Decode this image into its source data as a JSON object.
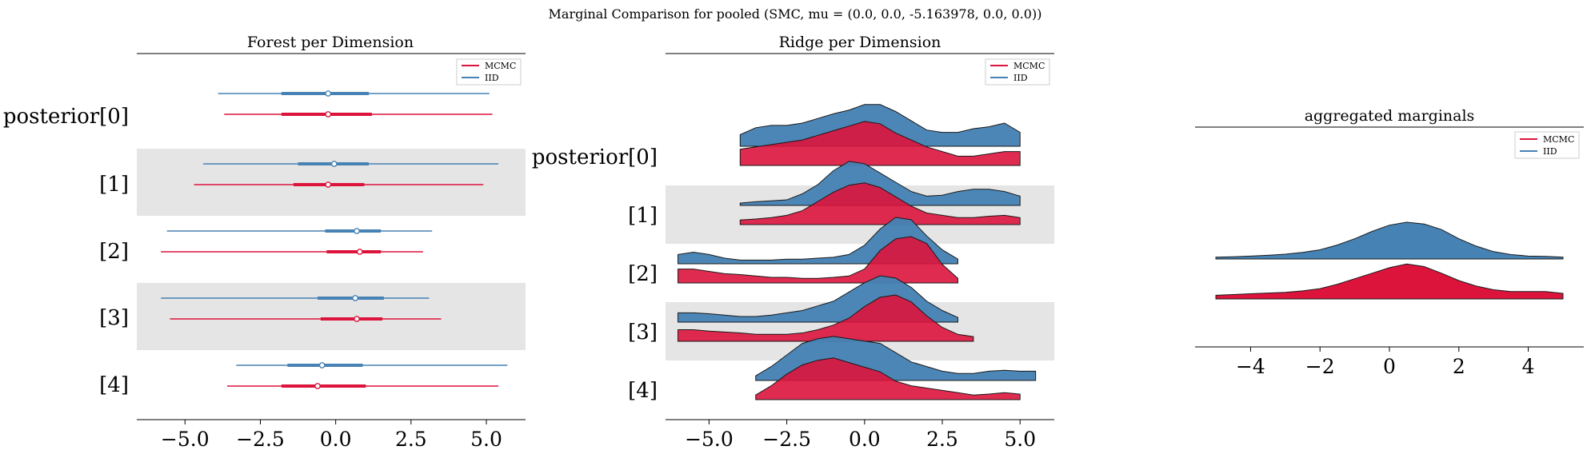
{
  "figure_title": "Marginal Comparison for pooled (SMC, mu = (0.0, 0.0, -5.163978, 0.0, 0.0))",
  "colors": {
    "mcmc": "#dc143c",
    "iid": "#4682b4",
    "band": "#e5e5e5"
  },
  "chart_data": [
    {
      "type": "forest",
      "title": "Forest per Dimension",
      "legend": [
        "MCMC",
        "IID"
      ],
      "legend_position": "top-right",
      "xlim": [
        -6.6,
        6.3
      ],
      "xticks": [
        -5.0,
        -2.5,
        0.0,
        2.5,
        5.0
      ],
      "xtick_labels": [
        "−5.0",
        "−2.5",
        "0.0",
        "2.5",
        "5.0"
      ],
      "ylabels": [
        "posterior[0]",
        "[1]",
        "[2]",
        "[3]",
        "[4]"
      ],
      "series": {
        "IID": [
          {
            "hdi": [
              -3.9,
              5.1
            ],
            "iqr": [
              -1.8,
              1.1
            ],
            "median": -0.25
          },
          {
            "hdi": [
              -4.4,
              5.4
            ],
            "iqr": [
              -1.25,
              1.1
            ],
            "median": -0.05
          },
          {
            "hdi": [
              -5.6,
              3.2
            ],
            "iqr": [
              -0.35,
              1.5
            ],
            "median": 0.7
          },
          {
            "hdi": [
              -5.8,
              3.1
            ],
            "iqr": [
              -0.6,
              1.6
            ],
            "median": 0.65
          },
          {
            "hdi": [
              -3.3,
              5.7
            ],
            "iqr": [
              -1.6,
              0.9
            ],
            "median": -0.45
          }
        ],
        "MCMC": [
          {
            "hdi": [
              -3.7,
              5.2
            ],
            "iqr": [
              -1.8,
              1.2
            ],
            "median": -0.25
          },
          {
            "hdi": [
              -4.7,
              4.9
            ],
            "iqr": [
              -1.4,
              0.95
            ],
            "median": -0.25
          },
          {
            "hdi": [
              -5.8,
              2.9
            ],
            "iqr": [
              -0.3,
              1.5
            ],
            "median": 0.8
          },
          {
            "hdi": [
              -5.5,
              3.5
            ],
            "iqr": [
              -0.5,
              1.55
            ],
            "median": 0.7
          },
          {
            "hdi": [
              -3.6,
              5.4
            ],
            "iqr": [
              -1.8,
              1.0
            ],
            "median": -0.6
          }
        ]
      }
    },
    {
      "type": "ridge",
      "title": "Ridge per Dimension",
      "legend": [
        "MCMC",
        "IID"
      ],
      "legend_position": "top-right",
      "xlim": [
        -6.4,
        6.1
      ],
      "xticks": [
        -5.0,
        -2.5,
        0.0,
        2.5,
        5.0
      ],
      "xtick_labels": [
        "−5.0",
        "−2.5",
        "0.0",
        "2.5",
        "5.0"
      ],
      "ylabels": [
        "posterior[0]",
        "[1]",
        "[2]",
        "[3]",
        "[4]"
      ],
      "x": [
        -6.0,
        -5.5,
        -5.0,
        -4.5,
        -4.0,
        -3.5,
        -3.0,
        -2.5,
        -2.0,
        -1.5,
        -1.0,
        -0.5,
        0.0,
        0.5,
        1.0,
        1.5,
        2.0,
        2.5,
        3.0,
        3.5,
        4.0,
        4.5,
        5.0,
        5.5
      ],
      "IID": [
        [
          null,
          null,
          null,
          null,
          0.25,
          0.4,
          0.45,
          0.45,
          0.5,
          0.6,
          0.7,
          0.78,
          0.9,
          0.9,
          0.75,
          0.55,
          0.35,
          0.3,
          0.3,
          0.38,
          0.42,
          0.5,
          0.3,
          null
        ],
        [
          null,
          null,
          null,
          null,
          0.05,
          0.08,
          0.1,
          0.12,
          0.25,
          0.45,
          0.75,
          0.95,
          0.9,
          0.7,
          0.5,
          0.3,
          0.2,
          0.22,
          0.3,
          0.35,
          0.35,
          0.3,
          0.2,
          null
        ],
        [
          0.2,
          0.25,
          0.2,
          0.12,
          0.08,
          0.08,
          0.08,
          0.1,
          0.1,
          0.12,
          0.14,
          0.2,
          0.4,
          0.75,
          1.0,
          0.95,
          0.6,
          0.3,
          0.1,
          null,
          null,
          null,
          null,
          null
        ],
        [
          0.2,
          0.2,
          0.18,
          0.15,
          0.12,
          0.12,
          0.15,
          0.2,
          0.25,
          0.35,
          0.45,
          0.65,
          0.85,
          1.0,
          0.95,
          0.75,
          0.45,
          0.25,
          0.1,
          null,
          null,
          null,
          null,
          null
        ],
        [
          null,
          null,
          null,
          null,
          null,
          0.1,
          0.3,
          0.55,
          0.8,
          0.9,
          0.95,
          0.9,
          0.85,
          0.8,
          0.6,
          0.4,
          0.3,
          0.2,
          0.15,
          0.15,
          0.2,
          0.22,
          0.2,
          0.2
        ]
      ],
      "MCMC": [
        [
          null,
          null,
          null,
          null,
          0.35,
          0.4,
          0.45,
          0.5,
          0.55,
          0.65,
          0.75,
          0.85,
          0.95,
          0.9,
          0.7,
          0.55,
          0.4,
          0.3,
          0.2,
          0.2,
          0.25,
          0.3,
          0.3,
          null
        ],
        [
          null,
          null,
          null,
          null,
          0.1,
          0.12,
          0.15,
          0.2,
          0.3,
          0.5,
          0.7,
          0.85,
          0.9,
          0.8,
          0.6,
          0.4,
          0.25,
          0.2,
          0.15,
          0.15,
          0.18,
          0.2,
          0.15,
          null
        ],
        [
          0.3,
          0.3,
          0.25,
          0.2,
          0.18,
          0.15,
          0.12,
          0.12,
          0.1,
          0.1,
          0.12,
          0.15,
          0.3,
          0.7,
          0.95,
          1.0,
          0.85,
          0.4,
          0.1,
          null,
          null,
          null,
          null,
          null
        ],
        [
          0.25,
          0.25,
          0.22,
          0.2,
          0.18,
          0.15,
          0.15,
          0.15,
          0.18,
          0.25,
          0.35,
          0.5,
          0.75,
          0.95,
          1.0,
          0.85,
          0.55,
          0.3,
          0.15,
          0.1,
          null,
          null,
          null,
          null
        ],
        [
          null,
          null,
          null,
          null,
          null,
          0.1,
          0.3,
          0.55,
          0.75,
          0.85,
          0.9,
          0.8,
          0.7,
          0.6,
          0.4,
          0.3,
          0.25,
          0.2,
          0.15,
          0.1,
          0.12,
          0.15,
          0.12,
          null
        ]
      ]
    },
    {
      "type": "ridge",
      "title": "aggregated marginals",
      "legend": [
        "MCMC",
        "IID"
      ],
      "legend_position": "top-right",
      "xlim": [
        -5.6,
        5.6
      ],
      "xticks": [
        -4,
        -2,
        0,
        2,
        4
      ],
      "xtick_labels": [
        "−4",
        "−2",
        "0",
        "2",
        "4"
      ],
      "x": [
        -5.0,
        -4.5,
        -4.0,
        -3.5,
        -3.0,
        -2.5,
        -2.0,
        -1.5,
        -1.0,
        -0.5,
        0.0,
        0.5,
        1.0,
        1.5,
        2.0,
        2.5,
        3.0,
        3.5,
        4.0,
        4.5,
        5.0
      ],
      "IID": [
        0.05,
        0.06,
        0.08,
        0.1,
        0.13,
        0.18,
        0.25,
        0.38,
        0.55,
        0.75,
        0.92,
        1.0,
        0.95,
        0.8,
        0.55,
        0.35,
        0.2,
        0.12,
        0.08,
        0.07,
        0.05
      ],
      "MCMC": [
        0.1,
        0.12,
        0.14,
        0.16,
        0.18,
        0.22,
        0.28,
        0.4,
        0.55,
        0.7,
        0.85,
        0.95,
        0.88,
        0.7,
        0.5,
        0.35,
        0.25,
        0.2,
        0.2,
        0.2,
        0.15
      ]
    }
  ]
}
